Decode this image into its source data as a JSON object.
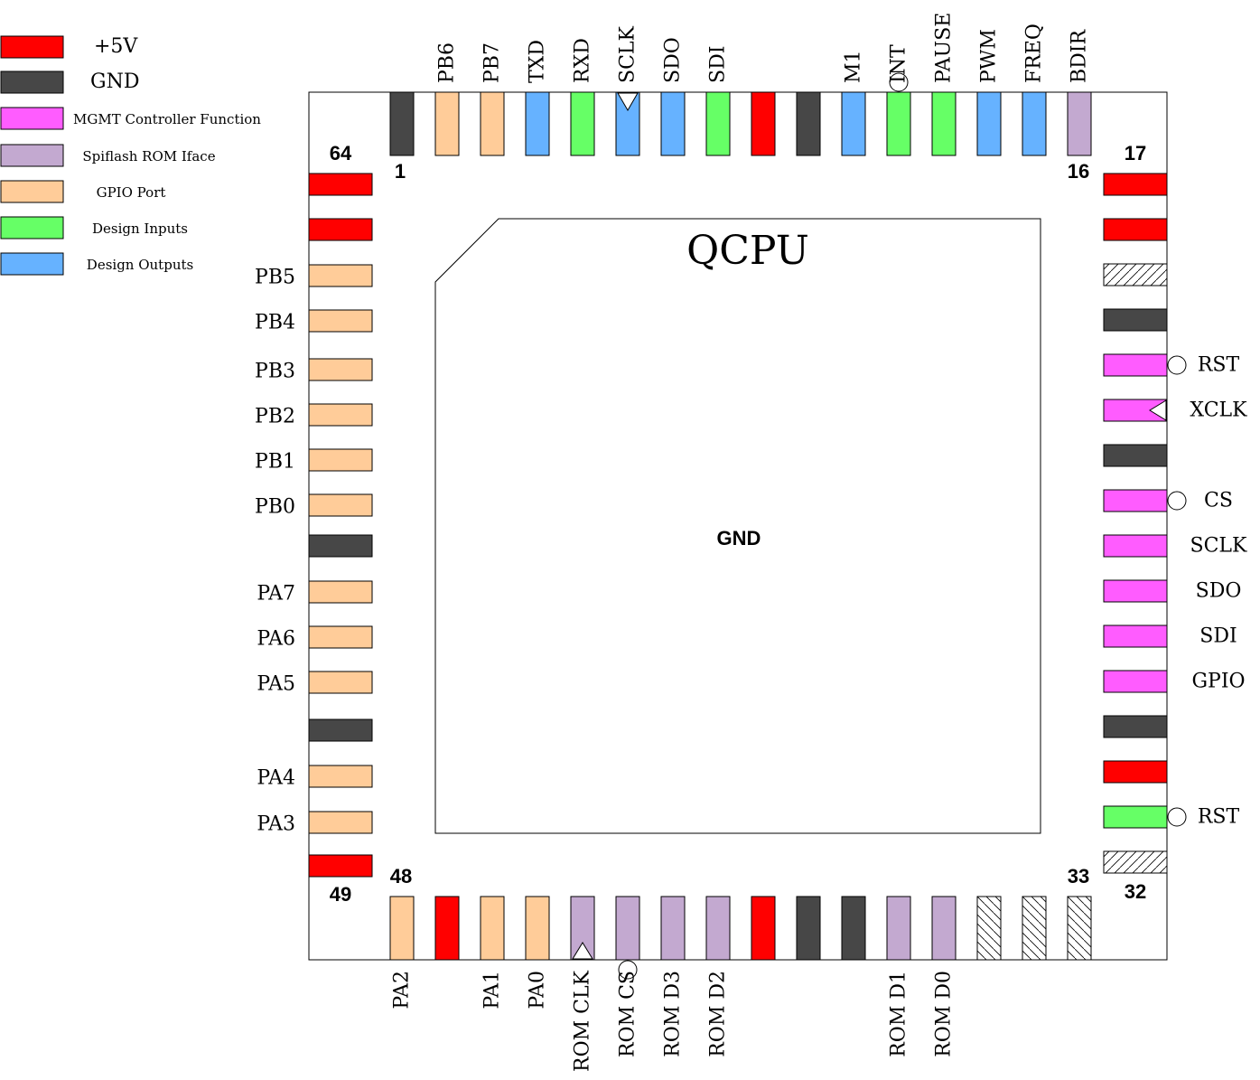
{
  "chip": {
    "title": "QCPU",
    "center_label": "GND"
  },
  "colors": {
    "pwr": "#ff0000",
    "gnd": "#474747",
    "mgmt": "#ff5cff",
    "rom": "#c3a9d0",
    "gpio": "#ffcc99",
    "in": "#66ff66",
    "out": "#66b2ff",
    "nc": "#ffffff"
  },
  "legend": [
    {
      "type": "pwr",
      "label": "+5V"
    },
    {
      "type": "gnd",
      "label": "GND"
    },
    {
      "type": "mgmt",
      "label": "MGMT Controller Function"
    },
    {
      "type": "rom",
      "label": "Spiflash ROM Iface"
    },
    {
      "type": "gpio",
      "label": "GPIO Port"
    },
    {
      "type": "in",
      "label": "Design Inputs"
    },
    {
      "type": "out",
      "label": "Design Outputs"
    }
  ],
  "corner_numbers": {
    "top_first": "1",
    "top_last": "16",
    "right_first": "17",
    "right_last": "32",
    "bottom_first": "33",
    "bottom_last": "48",
    "left_first": "49",
    "left_last": "64"
  },
  "pins": {
    "top": [
      {
        "type": "gnd",
        "label": "",
        "marker": ""
      },
      {
        "type": "gpio",
        "label": "PB6",
        "marker": ""
      },
      {
        "type": "gpio",
        "label": "PB7",
        "marker": ""
      },
      {
        "type": "out",
        "label": "TXD",
        "marker": ""
      },
      {
        "type": "in",
        "label": "RXD",
        "marker": ""
      },
      {
        "type": "out",
        "label": "SCLK",
        "marker": "clock"
      },
      {
        "type": "out",
        "label": "SDO",
        "marker": ""
      },
      {
        "type": "in",
        "label": "SDI",
        "marker": ""
      },
      {
        "type": "pwr",
        "label": "",
        "marker": ""
      },
      {
        "type": "gnd",
        "label": "",
        "marker": ""
      },
      {
        "type": "out",
        "label": "M1",
        "marker": ""
      },
      {
        "type": "in",
        "label": "INT",
        "marker": "inverted"
      },
      {
        "type": "in",
        "label": "PAUSE",
        "marker": ""
      },
      {
        "type": "out",
        "label": "PWM",
        "marker": ""
      },
      {
        "type": "out",
        "label": "FREQ",
        "marker": ""
      },
      {
        "type": "rom",
        "label": "BDIR",
        "marker": ""
      }
    ],
    "right": [
      {
        "type": "pwr",
        "label": "",
        "marker": ""
      },
      {
        "type": "pwr",
        "label": "",
        "marker": ""
      },
      {
        "type": "nc",
        "label": "",
        "marker": ""
      },
      {
        "type": "gnd",
        "label": "",
        "marker": ""
      },
      {
        "type": "mgmt",
        "label": "RST",
        "marker": "inverted"
      },
      {
        "type": "mgmt",
        "label": "XCLK",
        "marker": "clock"
      },
      {
        "type": "gnd",
        "label": "",
        "marker": ""
      },
      {
        "type": "mgmt",
        "label": "CS",
        "marker": "inverted"
      },
      {
        "type": "mgmt",
        "label": "SCLK",
        "marker": ""
      },
      {
        "type": "mgmt",
        "label": "SDO",
        "marker": ""
      },
      {
        "type": "mgmt",
        "label": "SDI",
        "marker": ""
      },
      {
        "type": "mgmt",
        "label": "GPIO",
        "marker": ""
      },
      {
        "type": "gnd",
        "label": "",
        "marker": ""
      },
      {
        "type": "pwr",
        "label": "",
        "marker": ""
      },
      {
        "type": "in",
        "label": "RST",
        "marker": "inverted"
      },
      {
        "type": "nc",
        "label": "",
        "marker": ""
      }
    ],
    "bottom": [
      {
        "type": "nc",
        "label": "",
        "marker": ""
      },
      {
        "type": "nc",
        "label": "",
        "marker": ""
      },
      {
        "type": "nc",
        "label": "",
        "marker": ""
      },
      {
        "type": "rom",
        "label": "ROM D0",
        "marker": ""
      },
      {
        "type": "rom",
        "label": "ROM D1",
        "marker": ""
      },
      {
        "type": "gnd",
        "label": "",
        "marker": ""
      },
      {
        "type": "gnd",
        "label": "",
        "marker": ""
      },
      {
        "type": "pwr",
        "label": "",
        "marker": ""
      },
      {
        "type": "rom",
        "label": "ROM D2",
        "marker": ""
      },
      {
        "type": "rom",
        "label": "ROM D3",
        "marker": ""
      },
      {
        "type": "rom",
        "label": "ROM CS",
        "marker": "inverted"
      },
      {
        "type": "rom",
        "label": "ROM CLK",
        "marker": "clock"
      },
      {
        "type": "gpio",
        "label": "PA0",
        "marker": ""
      },
      {
        "type": "gpio",
        "label": "PA1",
        "marker": ""
      },
      {
        "type": "pwr",
        "label": "",
        "marker": ""
      },
      {
        "type": "gpio",
        "label": "PA2",
        "marker": ""
      }
    ],
    "left": [
      {
        "type": "pwr",
        "label": "",
        "marker": ""
      },
      {
        "type": "gpio",
        "label": "PA3",
        "marker": ""
      },
      {
        "type": "gpio",
        "label": "PA4",
        "marker": ""
      },
      {
        "type": "gnd",
        "label": "",
        "marker": ""
      },
      {
        "type": "gpio",
        "label": "PA5",
        "marker": ""
      },
      {
        "type": "gpio",
        "label": "PA6",
        "marker": ""
      },
      {
        "type": "gpio",
        "label": "PA7",
        "marker": ""
      },
      {
        "type": "gnd",
        "label": "",
        "marker": ""
      },
      {
        "type": "gpio",
        "label": "PB0",
        "marker": ""
      },
      {
        "type": "gpio",
        "label": "PB1",
        "marker": ""
      },
      {
        "type": "gpio",
        "label": "PB2",
        "marker": ""
      },
      {
        "type": "gpio",
        "label": "PB3",
        "marker": ""
      },
      {
        "type": "gpio",
        "label": "PB4",
        "marker": ""
      },
      {
        "type": "gpio",
        "label": "PB5",
        "marker": ""
      },
      {
        "type": "pwr",
        "label": "",
        "marker": ""
      },
      {
        "type": "pwr",
        "label": "",
        "marker": ""
      }
    ]
  }
}
